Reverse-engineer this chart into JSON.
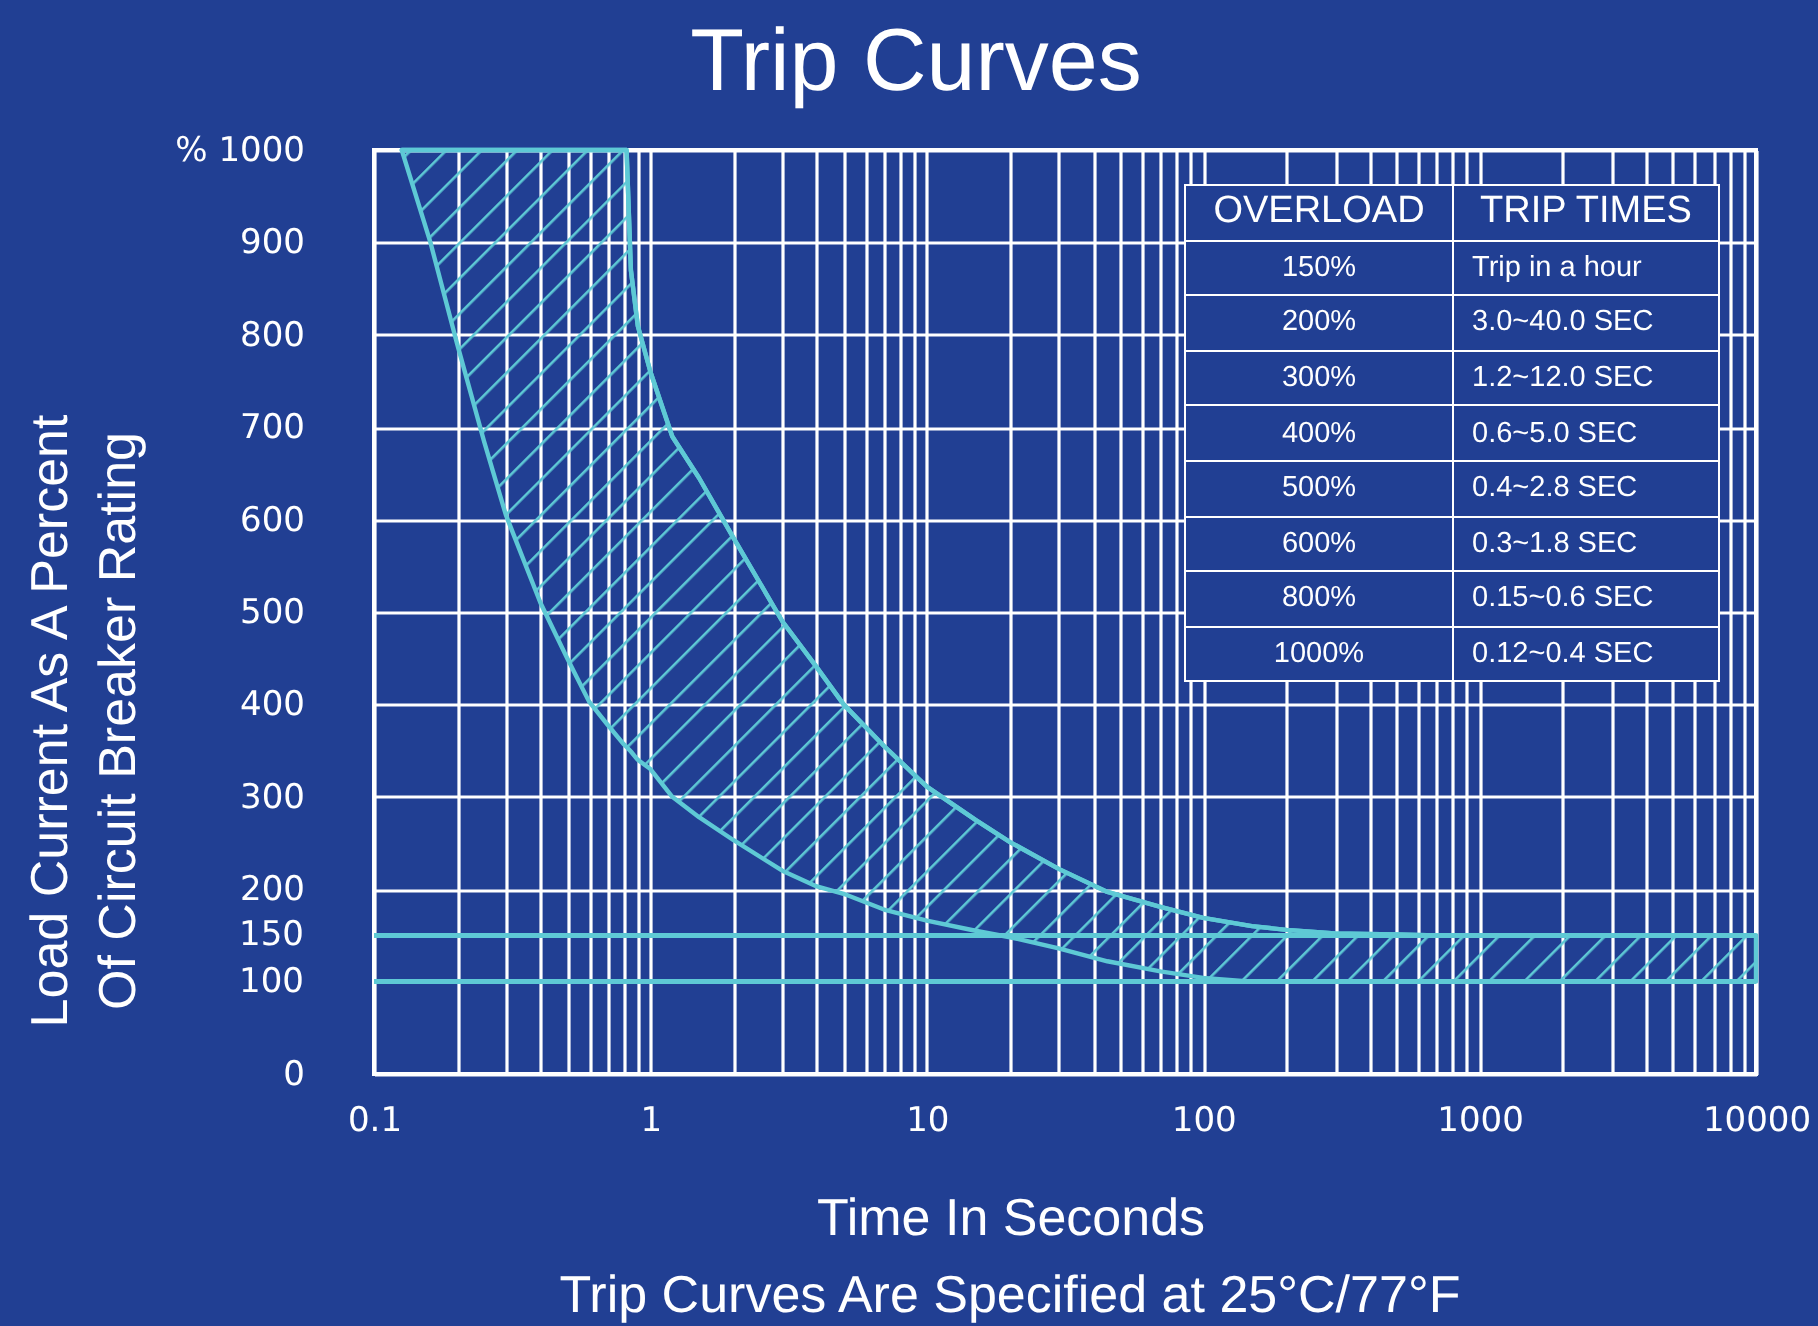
{
  "chart_data": {
    "type": "line",
    "title": "Trip Curves",
    "xlabel": "Time In Seconds",
    "ylabel": "Load Current As A Percent\nOf Circuit Breaker Rating",
    "annotations": [
      "Trip Curves Are Specified at 25°C/77°F",
      "OVERLOAD",
      "TRIP TIMES",
      "150%",
      "Trip in a hour",
      "200%",
      "3.0~40.0 SEC",
      "300%",
      "1.2~12.0 SEC",
      "400%",
      "0.6~5.0 SEC",
      "500%",
      "0.4~2.8 SEC",
      "600%",
      "0.3~1.8 SEC",
      "800%",
      "0.15~0.6 SEC",
      "1000%",
      "0.12~0.4 SEC"
    ],
    "x": [
      0.126,
      0.16,
      0.2,
      0.25,
      0.3,
      0.4,
      0.5,
      0.6,
      0.7,
      0.8,
      0.82,
      0.85,
      0.9,
      1,
      1.2,
      1.5,
      2,
      3,
      4,
      5,
      7,
      10,
      15,
      20,
      30,
      45,
      70,
      100,
      150,
      200,
      300,
      500,
      700,
      1000,
      10000
    ],
    "series": [
      {
        "color": "#5ec9d5",
        "values": [
          1000,
          1000,
          1000,
          1000,
          1000,
          1000,
          1000,
          1000,
          1000,
          1000,
          1000,
          870,
          810,
          760,
          690,
          645,
          580,
          490,
          440,
          400,
          355,
          311,
          275,
          251,
          222,
          197,
          181,
          169,
          160,
          156,
          152,
          151,
          150,
          150,
          150
        ],
        "lower": [
          1000,
          900,
          790,
          685,
          605,
          510,
          450,
          403,
          378,
          357,
          354,
          349,
          340,
          330,
          300,
          278,
          253,
          220,
          203,
          195,
          178,
          166,
          155,
          148,
          136,
          122,
          111,
          104,
          100,
          100,
          100,
          100,
          100,
          100,
          100
        ],
        "upper": [
          1000,
          1000,
          1000,
          1000,
          1000,
          1000,
          1000,
          1000,
          1000,
          1000,
          1000,
          870,
          810,
          760,
          690,
          645,
          580,
          490,
          440,
          400,
          355,
          311,
          275,
          251,
          222,
          197,
          181,
          169,
          160,
          156,
          152,
          151,
          150,
          150,
          150
        ]
      }
    ],
    "xlim": [
      0.1,
      10000
    ],
    "ylim": [
      0,
      1000
    ],
    "log": "x",
    "xticks": [
      0.1,
      {
        "value": 0.2,
        "label": null
      },
      {
        "value": 0.3,
        "label": null
      },
      {
        "value": 0.4,
        "label": null
      },
      {
        "value": 0.5,
        "label": null
      },
      {
        "value": 0.6,
        "label": null
      },
      {
        "value": 0.7,
        "label": null
      },
      {
        "value": 0.8,
        "label": null
      },
      {
        "value": 0.9,
        "label": null
      },
      1,
      {
        "value": 2,
        "label": null
      },
      {
        "value": 3,
        "label": null
      },
      {
        "value": 4,
        "label": null
      },
      {
        "value": 5,
        "label": null
      },
      {
        "value": 6,
        "label": null
      },
      {
        "value": 7,
        "label": null
      },
      {
        "value": 8,
        "label": null
      },
      {
        "value": 9,
        "label": null
      },
      10,
      {
        "value": 20,
        "label": null
      },
      {
        "value": 30,
        "label": null
      },
      {
        "value": 40,
        "label": null
      },
      {
        "value": 50,
        "label": null
      },
      {
        "value": 60,
        "label": null
      },
      {
        "value": 70,
        "label": null
      },
      {
        "value": 80,
        "label": null
      },
      {
        "value": 90,
        "label": null
      },
      100,
      {
        "value": 200,
        "label": null
      },
      {
        "value": 300,
        "label": null
      },
      {
        "value": 400,
        "label": null
      },
      {
        "value": 500,
        "label": null
      },
      {
        "value": 600,
        "label": null
      },
      {
        "value": 700,
        "label": null
      },
      {
        "value": 800,
        "label": null
      },
      {
        "value": 900,
        "label": null
      },
      1000,
      {
        "value": 2000,
        "label": null
      },
      {
        "value": 3000,
        "label": null
      },
      {
        "value": 4000,
        "label": null
      },
      {
        "value": 5000,
        "label": null
      },
      {
        "value": 6000,
        "label": null
      },
      {
        "value": 7000,
        "label": null
      },
      {
        "value": 8000,
        "label": null
      },
      {
        "value": 9000,
        "label": null
      },
      10000
    ],
    "yticks": [
      0,
      200,
      300,
      400,
      500,
      600,
      700,
      800,
      900,
      {
        "value": 1000,
        "label": "%  1000"
      }
    ],
    "ref_lines": [
      {
        "axis": "y",
        "value": 100,
        "label": "100",
        "color": "#5ec9d5"
      },
      {
        "axis": "y",
        "value": 150,
        "label": "150",
        "color": "#5ec9d5"
      }
    ],
    "grid": true
  }
}
